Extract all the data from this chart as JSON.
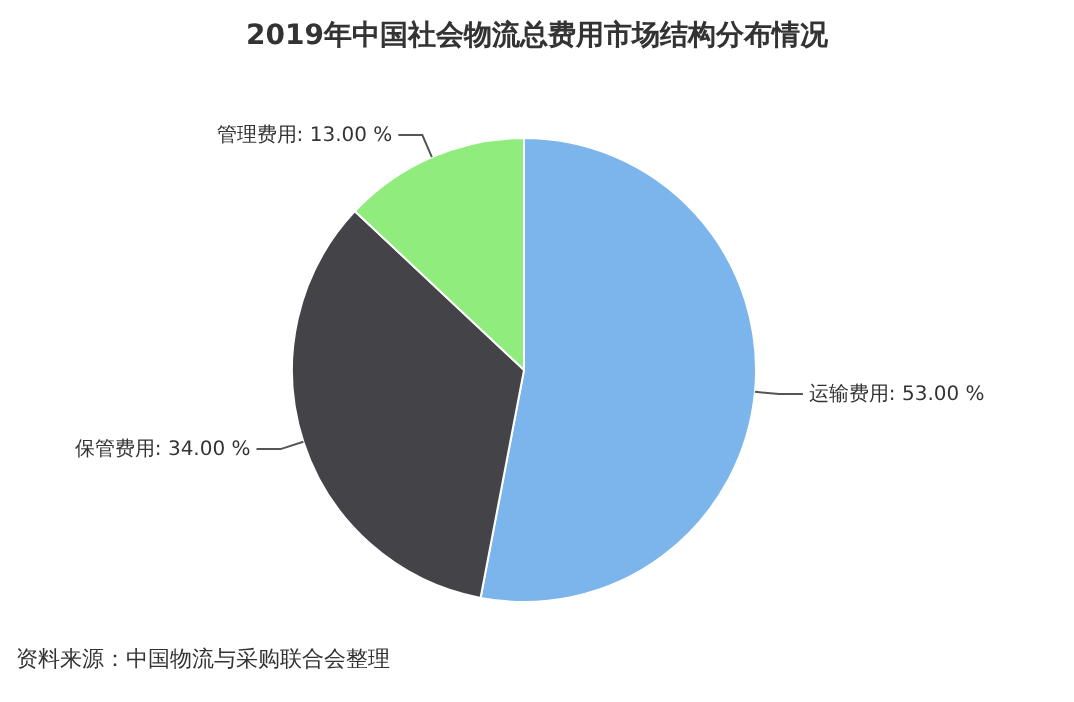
{
  "chart_data": {
    "type": "pie",
    "title": "2019年中国社会物流总费用市场结构分布情况",
    "categories": [
      "运输费用",
      "保管费用",
      "管理费用"
    ],
    "values": [
      53,
      34,
      13
    ],
    "value_labels": [
      "53.00 %",
      "34.00 %",
      "13.00 %"
    ],
    "colors": [
      "#7cb5ec",
      "#434348",
      "#90ed7d"
    ],
    "annotations": [
      "资料来源：中国物流与采购联合会整理"
    ]
  }
}
